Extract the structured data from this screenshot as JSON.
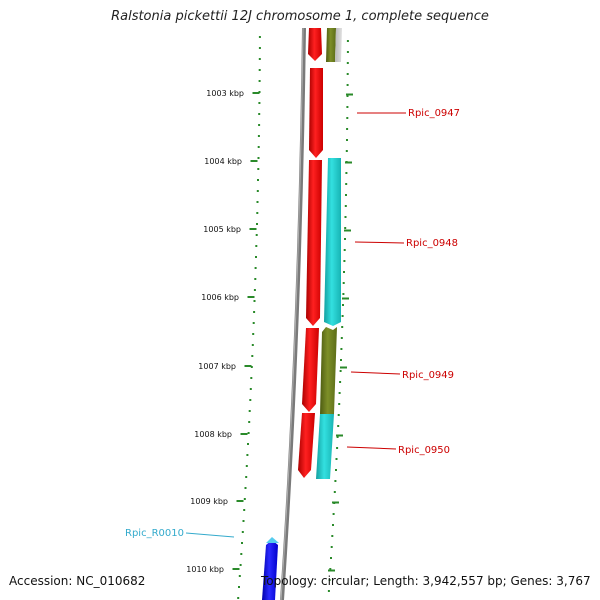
{
  "title": "Ralstonia pickettii 12J chromosome 1, complete sequence",
  "accession": "Accession: NC_010682",
  "topology": "Topology: circular; Length: 3,942,557 bp; Genes: 3,767",
  "ticks": [
    {
      "label": "1003 kbp"
    },
    {
      "label": "1004 kbp"
    },
    {
      "label": "1005 kbp"
    },
    {
      "label": "1006 kbp"
    },
    {
      "label": "1007 kbp"
    },
    {
      "label": "1008 kbp"
    },
    {
      "label": "1009 kbp"
    },
    {
      "label": "1010 kbp"
    }
  ],
  "gene_labels": [
    {
      "name": "Rpic_0947",
      "color": "#cc0000"
    },
    {
      "name": "Rpic_0948",
      "color": "#cc0000"
    },
    {
      "name": "Rpic_0949",
      "color": "#cc0000"
    },
    {
      "name": "Rpic_0950",
      "color": "#cc0000"
    },
    {
      "name": "Rpic_R0010",
      "color": "#33aacc"
    }
  ],
  "colors": {
    "backbone": "#8a8a8a",
    "forward_cds": "#ff0000",
    "reverse_cds_olive": "#6b7d1e",
    "reverse_cds_cyan": "#22cccc",
    "rna": "#0000ee",
    "gc_skew_dots": "#2a8a2a"
  }
}
